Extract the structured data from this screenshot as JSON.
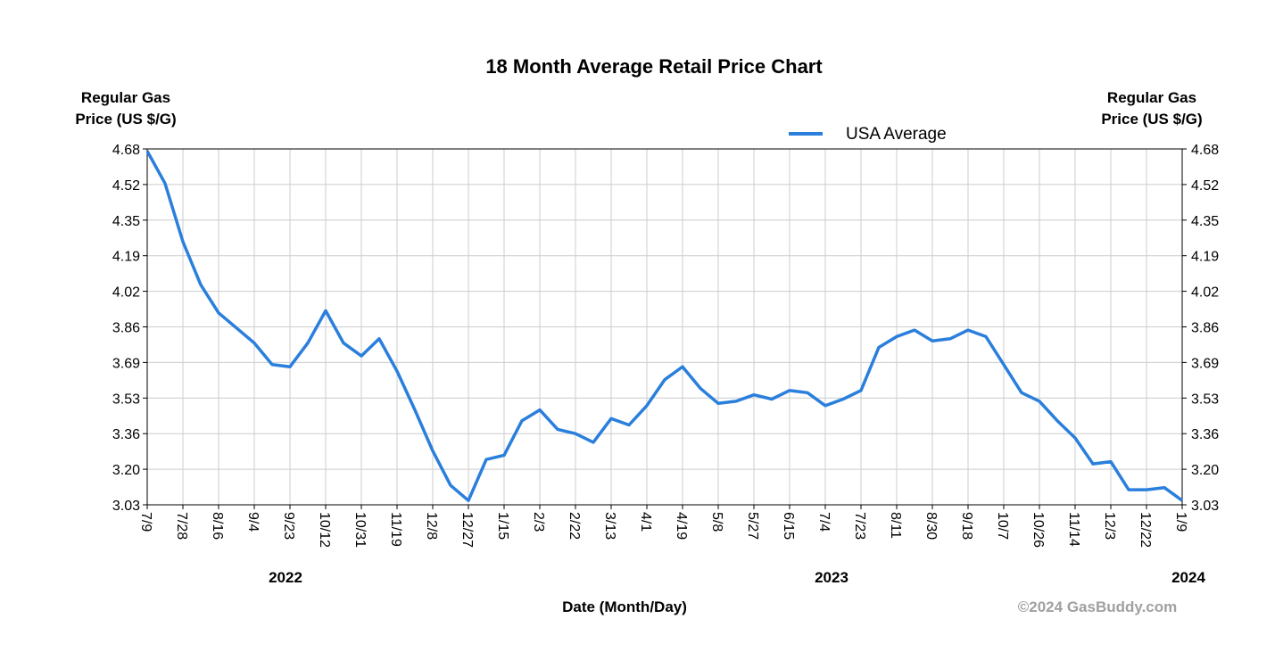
{
  "chart_data": {
    "type": "line",
    "title": "18 Month Average Retail Price Chart",
    "ylabel_lines": [
      "Regular Gas",
      "Price (US $/G)"
    ],
    "y2label_lines": [
      "Regular Gas",
      "Price (US $/G)"
    ],
    "xlabel": "Date (Month/Day)",
    "years": [
      "2022",
      "2023",
      "2024"
    ],
    "credit": "©2024 GasBuddy.com",
    "legend": "top",
    "grid": true,
    "categories": [
      "7/9",
      null,
      "7/28",
      null,
      "8/16",
      null,
      "9/4",
      null,
      "9/23",
      null,
      "10/12",
      null,
      "10/31",
      null,
      "11/19",
      null,
      "12/8",
      null,
      "12/27",
      null,
      "1/15",
      null,
      "2/3",
      null,
      "2/22",
      null,
      "3/13",
      null,
      "4/1",
      null,
      "4/19",
      null,
      "5/8",
      null,
      "5/27",
      null,
      "6/15",
      null,
      "7/4",
      null,
      "7/23",
      null,
      "8/11",
      null,
      "8/30",
      null,
      "9/18",
      null,
      "10/7",
      null,
      "10/26",
      null,
      "11/14",
      null,
      "12/3",
      null,
      "12/22",
      null,
      "1/9"
    ],
    "series": [
      {
        "name": "USA Average",
        "color": "#2a7fdc",
        "values": [
          4.67,
          4.52,
          4.25,
          4.05,
          3.92,
          3.85,
          3.78,
          3.68,
          3.67,
          3.78,
          3.93,
          3.78,
          3.72,
          3.8,
          3.65,
          3.47,
          3.28,
          3.12,
          3.05,
          3.24,
          3.26,
          3.42,
          3.47,
          3.38,
          3.36,
          3.32,
          3.43,
          3.4,
          3.49,
          3.61,
          3.67,
          3.57,
          3.5,
          3.51,
          3.54,
          3.52,
          3.56,
          3.55,
          3.49,
          3.52,
          3.56,
          3.76,
          3.81,
          3.84,
          3.79,
          3.8,
          3.84,
          3.81,
          3.68,
          3.55,
          3.51,
          3.42,
          3.34,
          3.22,
          3.23,
          3.1,
          3.1,
          3.11,
          3.05
        ]
      }
    ],
    "ylim": [
      3.03,
      4.68
    ],
    "yticks": [
      3.03,
      {
        "value": 3.195,
        "label": "3.20"
      },
      3.36,
      {
        "value": 3.525,
        "label": "3.53"
      },
      3.69,
      {
        "value": 3.855,
        "label": "3.86"
      },
      4.02,
      {
        "value": 4.185,
        "label": "4.19"
      },
      4.35,
      {
        "value": 4.515,
        "label": "4.52"
      },
      4.68
    ],
    "y2lim": [
      3.03,
      4.68
    ],
    "y2ticks": [
      3.03,
      {
        "value": 3.195,
        "label": "3.20"
      },
      3.36,
      {
        "value": 3.525,
        "label": "3.53"
      },
      3.69,
      {
        "value": 3.855,
        "label": "3.86"
      },
      4.02,
      {
        "value": 4.185,
        "label": "4.19"
      },
      4.35,
      {
        "value": 4.515,
        "label": "4.52"
      },
      4.68
    ]
  }
}
